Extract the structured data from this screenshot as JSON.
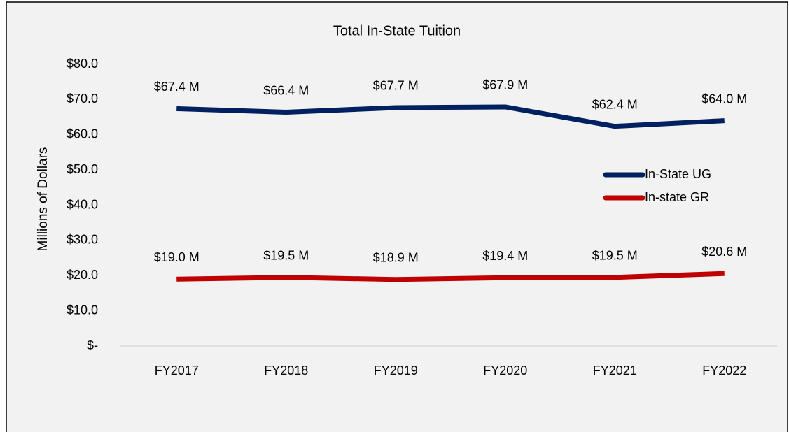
{
  "chart_data": {
    "type": "line",
    "title": "Total In-State Tuition",
    "y_label": "Millions of Dollars",
    "categories": [
      "FY2017",
      "FY2018",
      "FY2019",
      "FY2020",
      "FY2021",
      "FY2022"
    ],
    "series": [
      {
        "name": "In-State UG",
        "color": "#002060",
        "values": [
          67.4,
          66.4,
          67.7,
          67.9,
          62.4,
          64.0
        ],
        "value_labels": [
          "$67.4 M",
          "$66.4 M",
          "$67.7 M",
          "$67.9 M",
          "$62.4 M",
          "$64.0 M"
        ]
      },
      {
        "name": "In-state GR",
        "color": "#c00000",
        "values": [
          19.0,
          19.5,
          18.9,
          19.4,
          19.5,
          20.6
        ],
        "value_labels": [
          "$19.0 M",
          "$19.5 M",
          "$18.9 M",
          "$19.4 M",
          "$19.5 M",
          "$20.6 M"
        ]
      }
    ],
    "ylim": [
      0,
      80
    ],
    "yticks": [
      {
        "value": 0,
        "label": "$-"
      },
      {
        "value": 10,
        "label": "$10.0"
      },
      {
        "value": 20,
        "label": "$20.0"
      },
      {
        "value": 30,
        "label": "$30.0"
      },
      {
        "value": 40,
        "label": "$40.0"
      },
      {
        "value": 50,
        "label": "$50.0"
      },
      {
        "value": 60,
        "label": "$60.0"
      },
      {
        "value": 70,
        "label": "$70.0"
      },
      {
        "value": 80,
        "label": "$80.0"
      }
    ],
    "grid": false,
    "legend": "right"
  }
}
